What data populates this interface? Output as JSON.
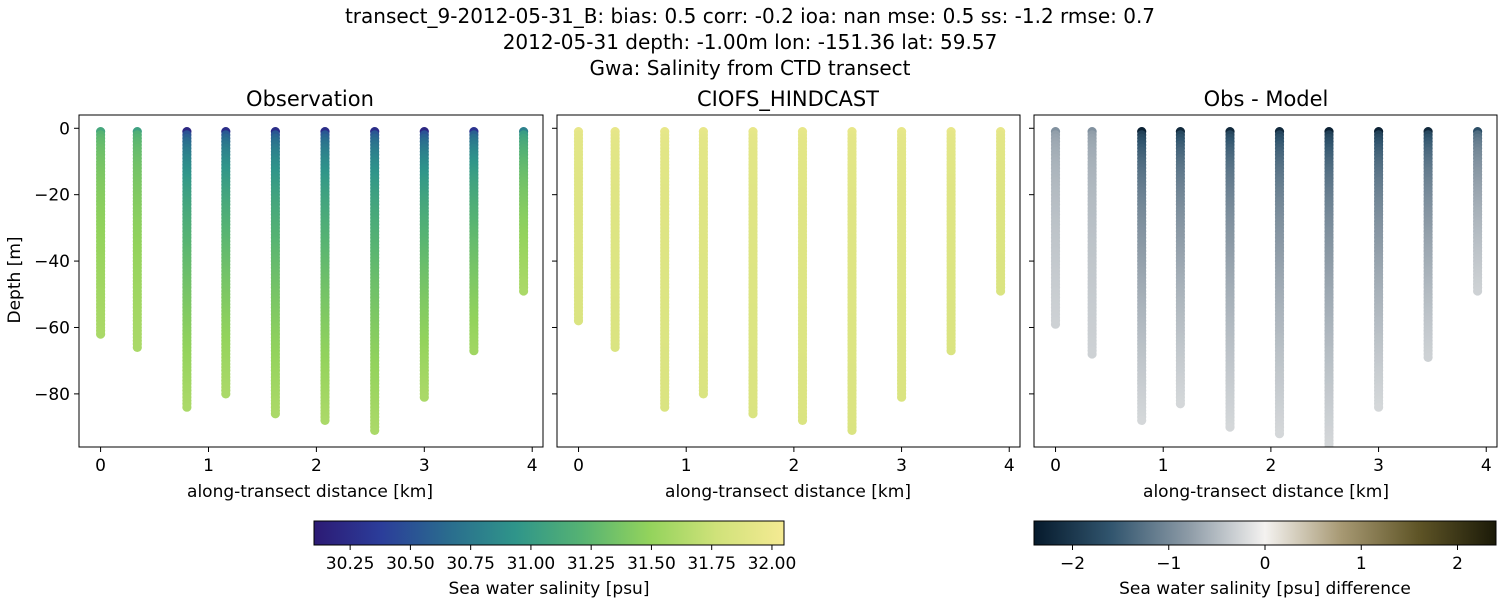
{
  "figure": {
    "title_lines": [
      "transect_9-2012-05-31_B: bias: 0.5  corr: -0.2  ioa: nan  mse: 0.5  ss: -1.2  rmse: 0.7",
      "2012-05-31 depth: -1.00m lon: -151.36 lat: 59.57",
      "Gwa: Salinity from CTD transect"
    ]
  },
  "chart_data": [
    {
      "type": "scatter",
      "title": "Observation",
      "xlabel": "along-transect distance [km]",
      "ylabel": "Depth [m]",
      "xlim": [
        -0.2,
        4.1
      ],
      "ylim": [
        -96,
        4
      ],
      "xticks": [
        0,
        1,
        2,
        3,
        4
      ],
      "yticks": [
        0,
        -20,
        -40,
        -60,
        -80
      ],
      "ytick_labels": [
        "0",
        "−20",
        "−40",
        "−60",
        "−80"
      ],
      "colormap": "viridis",
      "color_range": [
        30.1,
        32.05
      ],
      "casts": [
        {
          "x": 0.0,
          "max_depth": -62,
          "surface_value": 31.1,
          "deep_value": 31.6
        },
        {
          "x": 0.34,
          "max_depth": -66,
          "surface_value": 31.05,
          "deep_value": 31.6
        },
        {
          "x": 0.8,
          "max_depth": -84,
          "surface_value": 30.2,
          "deep_value": 31.6
        },
        {
          "x": 1.16,
          "max_depth": -80,
          "surface_value": 30.25,
          "deep_value": 31.6
        },
        {
          "x": 1.62,
          "max_depth": -86,
          "surface_value": 30.25,
          "deep_value": 31.6
        },
        {
          "x": 2.08,
          "max_depth": -88,
          "surface_value": 30.25,
          "deep_value": 31.6
        },
        {
          "x": 2.54,
          "max_depth": -91,
          "surface_value": 30.25,
          "deep_value": 31.6
        },
        {
          "x": 3.0,
          "max_depth": -81,
          "surface_value": 30.2,
          "deep_value": 31.6
        },
        {
          "x": 3.46,
          "max_depth": -67,
          "surface_value": 30.3,
          "deep_value": 31.55
        },
        {
          "x": 3.92,
          "max_depth": -49,
          "surface_value": 30.8,
          "deep_value": 31.6
        }
      ]
    },
    {
      "type": "scatter",
      "title": "CIOFS_HINDCAST",
      "xlabel": "along-transect distance [km]",
      "ylabel": "",
      "xlim": [
        -0.2,
        4.1
      ],
      "ylim": [
        -96,
        4
      ],
      "xticks": [
        0,
        1,
        2,
        3,
        4
      ],
      "colormap": "viridis",
      "color_range": [
        30.1,
        32.05
      ],
      "casts": [
        {
          "x": 0.0,
          "max_depth": -58,
          "surface_value": 31.95,
          "deep_value": 31.85
        },
        {
          "x": 0.34,
          "max_depth": -66,
          "surface_value": 31.95,
          "deep_value": 31.85
        },
        {
          "x": 0.8,
          "max_depth": -84,
          "surface_value": 31.95,
          "deep_value": 31.85
        },
        {
          "x": 1.16,
          "max_depth": -80,
          "surface_value": 31.95,
          "deep_value": 31.85
        },
        {
          "x": 1.62,
          "max_depth": -86,
          "surface_value": 31.95,
          "deep_value": 31.85
        },
        {
          "x": 2.08,
          "max_depth": -88,
          "surface_value": 31.95,
          "deep_value": 31.85
        },
        {
          "x": 2.54,
          "max_depth": -91,
          "surface_value": 31.95,
          "deep_value": 31.85
        },
        {
          "x": 3.0,
          "max_depth": -81,
          "surface_value": 31.95,
          "deep_value": 31.85
        },
        {
          "x": 3.46,
          "max_depth": -67,
          "surface_value": 31.95,
          "deep_value": 31.85
        },
        {
          "x": 3.92,
          "max_depth": -49,
          "surface_value": 31.95,
          "deep_value": 31.85
        }
      ]
    },
    {
      "type": "scatter",
      "title": "Obs - Model",
      "xlabel": "along-transect distance [km]",
      "ylabel": "",
      "xlim": [
        -0.2,
        4.1
      ],
      "ylim": [
        -96,
        4
      ],
      "xticks": [
        0,
        1,
        2,
        3,
        4
      ],
      "colormap": "diff",
      "color_range": [
        -2.4,
        2.4
      ],
      "casts": [
        {
          "x": 0.0,
          "max_depth": -59,
          "surface_value": -0.9,
          "deep_value": -0.3
        },
        {
          "x": 0.34,
          "max_depth": -68,
          "surface_value": -0.9,
          "deep_value": -0.3
        },
        {
          "x": 0.8,
          "max_depth": -88,
          "surface_value": -2.3,
          "deep_value": -0.25
        },
        {
          "x": 1.16,
          "max_depth": -83,
          "surface_value": -2.2,
          "deep_value": -0.25
        },
        {
          "x": 1.62,
          "max_depth": -90,
          "surface_value": -2.2,
          "deep_value": -0.25
        },
        {
          "x": 2.08,
          "max_depth": -92,
          "surface_value": -2.2,
          "deep_value": -0.25
        },
        {
          "x": 2.54,
          "max_depth": -96,
          "surface_value": -2.3,
          "deep_value": -0.25
        },
        {
          "x": 3.0,
          "max_depth": -84,
          "surface_value": -2.3,
          "deep_value": -0.25
        },
        {
          "x": 3.46,
          "max_depth": -69,
          "surface_value": -2.2,
          "deep_value": -0.3
        },
        {
          "x": 3.92,
          "max_depth": -49,
          "surface_value": -1.7,
          "deep_value": -0.3
        }
      ]
    }
  ],
  "colorbars": [
    {
      "label": "Sea water salinity [psu]",
      "colormap": "viridis",
      "range": [
        30.1,
        32.05
      ],
      "ticks": [
        30.25,
        30.5,
        30.75,
        31.0,
        31.25,
        31.5,
        31.75,
        32.0
      ],
      "tick_labels": [
        "30.25",
        "30.50",
        "30.75",
        "31.00",
        "31.25",
        "31.50",
        "31.75",
        "32.00"
      ]
    },
    {
      "label": "Sea water salinity [psu] difference",
      "colormap": "diff",
      "range": [
        -2.4,
        2.4
      ],
      "ticks": [
        -2,
        -1,
        0,
        1,
        2
      ],
      "tick_labels": [
        "−2",
        "−1",
        "0",
        "1",
        "2"
      ]
    }
  ],
  "colors": {
    "viridis_stops": [
      "#440154",
      "#3b528b",
      "#21908d",
      "#5dc963",
      "#fde725"
    ],
    "viridis_display_stops": [
      "#2c1a74",
      "#2b3d9a",
      "#2a6c8e",
      "#2f958a",
      "#56b373",
      "#93d35c",
      "#d0e27a",
      "#f5ea93"
    ],
    "diff_stops": [
      "#061a2c",
      "#31556e",
      "#8c9aa6",
      "#f4f2f0",
      "#a69872",
      "#5e5426",
      "#1b1a08"
    ]
  }
}
